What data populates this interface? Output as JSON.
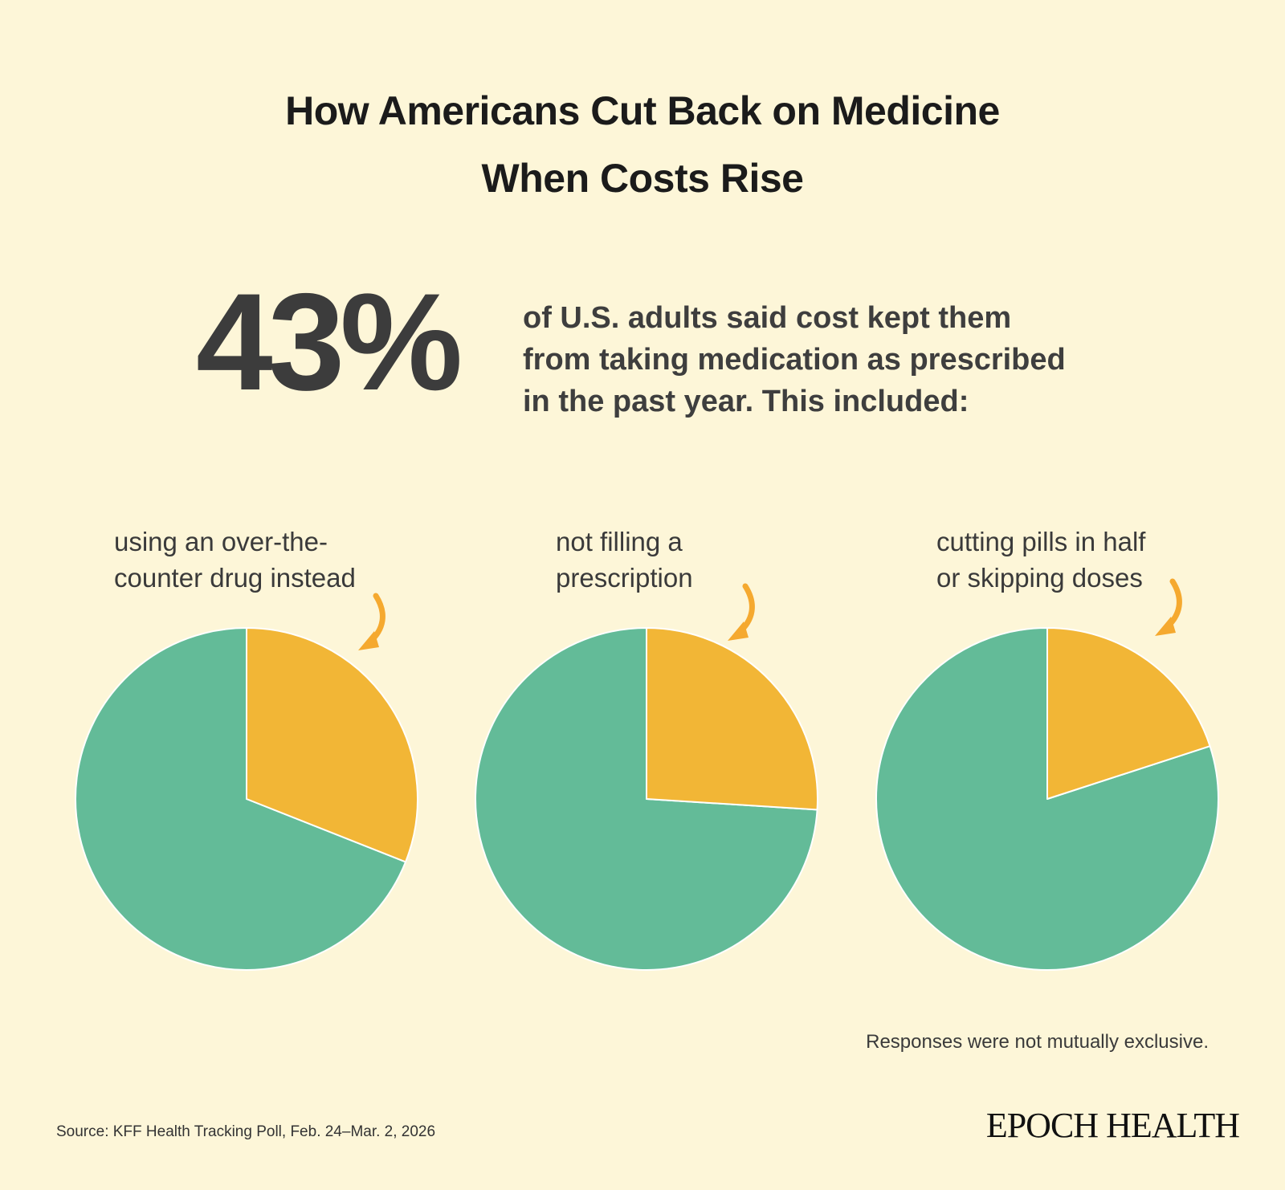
{
  "title_lines": [
    "How Americans Cut Back on Medicine",
    "When Costs Rise"
  ],
  "headline": {
    "value": "43%",
    "text_lines": [
      "of U.S. adults said cost kept them",
      "from taking medication as prescribed",
      "in the past year. This included:"
    ]
  },
  "chart_data": [
    {
      "type": "pie",
      "label_lines": [
        "using an over-the-",
        "counter drug instead"
      ],
      "highlight_percent": 31,
      "colors": {
        "highlight": "#f2b636",
        "rest": "#63bb98"
      }
    },
    {
      "type": "pie",
      "label_lines": [
        "not filling a",
        "prescription"
      ],
      "highlight_percent": 26,
      "colors": {
        "highlight": "#f2b636",
        "rest": "#63bb98"
      }
    },
    {
      "type": "pie",
      "label_lines": [
        "cutting pills in half",
        "or skipping doses"
      ],
      "highlight_percent": 20,
      "colors": {
        "highlight": "#f2b636",
        "rest": "#63bb98"
      }
    }
  ],
  "arrow_icon": "curved-arrow-icon",
  "note": "Responses were not mutually exclusive.",
  "source": "Source: KFF Health Tracking Poll, Feb. 24–Mar. 2, 2026",
  "logo": "EPOCH HEALTH",
  "colors": {
    "background": "#fdf6d8",
    "arrow": "#f5a92f"
  }
}
